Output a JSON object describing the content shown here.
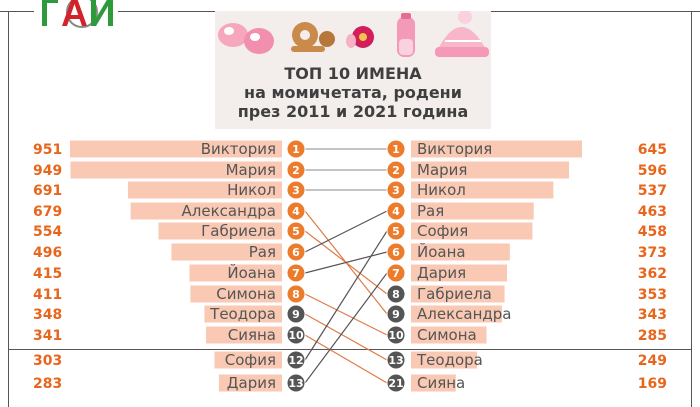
{
  "logo": {
    "text": "ГАИ"
  },
  "title": {
    "line1": "ТОП 10 ИМЕНА",
    "line2": "на момичетата, родени",
    "line3": "през 2011 и 2021 година"
  },
  "colors": {
    "bar": "#f9c9b4",
    "value_text": "#e8661c",
    "rank_top10": "#ec7c2c",
    "rank_dropped": "#555555",
    "rank_new": "#555555",
    "line_up": "#555555",
    "line_down": "#e07a47"
  },
  "icons": [
    "baby-shoes-icon",
    "wooden-teether-icon",
    "pacifier-icon",
    "baby-bottle-icon",
    "knit-hat-icon"
  ],
  "chart_data": {
    "type": "bar",
    "title": "ТОП 10 ИМЕНА на момичетата, родени през 2011 и 2021 година",
    "series": [
      {
        "name": "2011",
        "ranks": [
          1,
          2,
          3,
          4,
          5,
          6,
          7,
          8,
          9,
          10,
          12,
          13
        ],
        "names": [
          "Виктория",
          "Мария",
          "Никол",
          "Александра",
          "Габриела",
          "Рая",
          "Йоана",
          "Симона",
          "Теодора",
          "Сияна",
          "София",
          "Дария"
        ],
        "values": [
          951,
          949,
          691,
          679,
          554,
          496,
          415,
          411,
          348,
          341,
          303,
          283
        ]
      },
      {
        "name": "2021",
        "ranks": [
          1,
          2,
          3,
          4,
          5,
          6,
          7,
          8,
          9,
          10,
          13,
          21
        ],
        "names": [
          "Виктория",
          "Мария",
          "Никол",
          "Рая",
          "София",
          "Йоана",
          "Дария",
          "Габриела",
          "Александра",
          "Симона",
          "Теодора",
          "Сияна"
        ],
        "values": [
          645,
          596,
          537,
          463,
          458,
          373,
          362,
          353,
          343,
          285,
          249,
          169
        ]
      }
    ],
    "connections": [
      {
        "from_rank": 4,
        "to_rank": 9
      },
      {
        "from_rank": 5,
        "to_rank": 8
      },
      {
        "from_rank": 6,
        "to_rank": 4
      },
      {
        "from_rank": 7,
        "to_rank": 6
      },
      {
        "from_rank": 8,
        "to_rank": 10
      },
      {
        "from_rank": 9,
        "to_rank": 13
      },
      {
        "from_rank": 10,
        "to_rank": 21
      },
      {
        "from_rank": 12,
        "to_rank": 5
      },
      {
        "from_rank": 13,
        "to_rank": 7
      }
    ]
  }
}
